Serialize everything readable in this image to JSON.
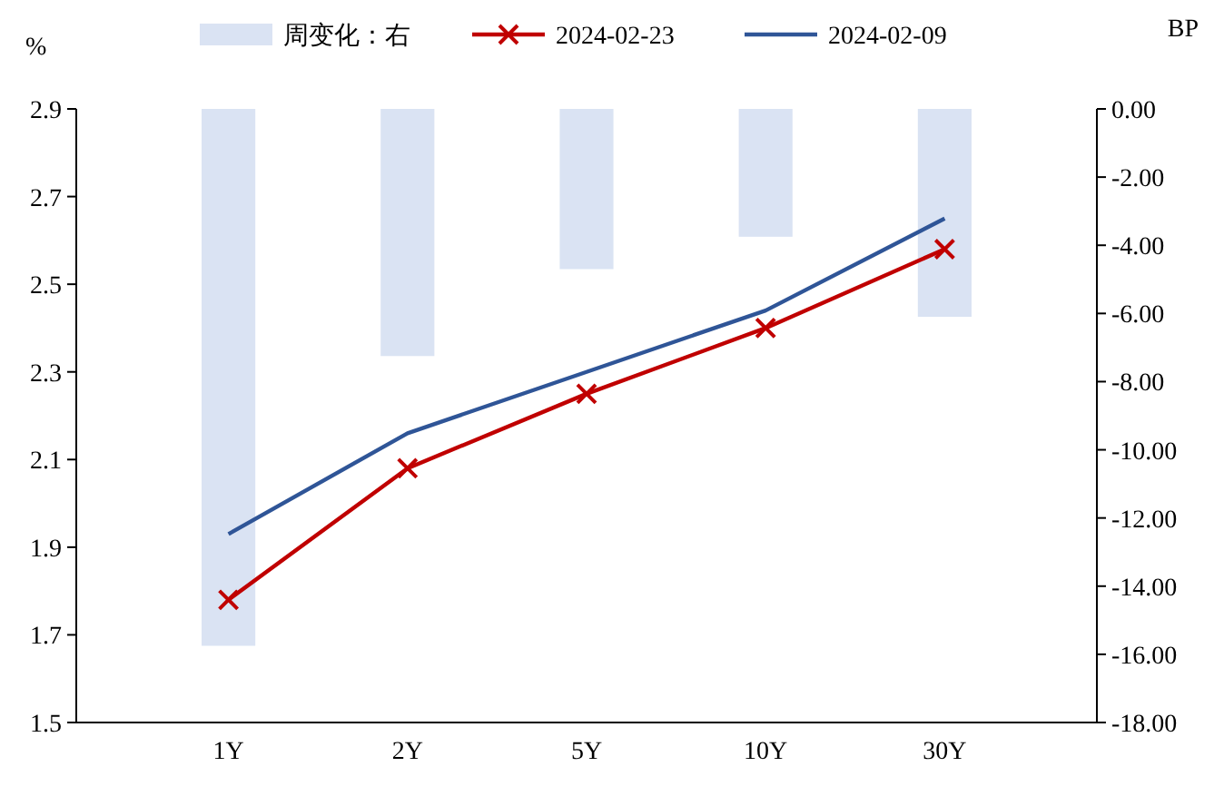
{
  "chart_data": {
    "type": "line",
    "categories": [
      "1Y",
      "2Y",
      "5Y",
      "10Y",
      "30Y"
    ],
    "ylabel": "%",
    "y2label": "BP",
    "ylim": [
      1.5,
      2.9
    ],
    "yticks": [
      1.5,
      1.7,
      1.9,
      2.1,
      2.3,
      2.5,
      2.7,
      2.9
    ],
    "y2lim": [
      -18,
      0
    ],
    "y2ticks": [
      {
        "value": -18,
        "label": "-18.00"
      },
      {
        "value": -16,
        "label": "-16.00"
      },
      {
        "value": -14,
        "label": "-14.00"
      },
      {
        "value": -12,
        "label": "-12.00"
      },
      {
        "value": -10,
        "label": "-10.00"
      },
      {
        "value": -8,
        "label": "-8.00"
      },
      {
        "value": -6,
        "label": "-6.00"
      },
      {
        "value": -4,
        "label": "-4.00"
      },
      {
        "value": -2,
        "label": "-2.00"
      },
      {
        "value": 0,
        "label": "0.00"
      }
    ],
    "legend": "top",
    "grid": false,
    "series": [
      {
        "name": "周变化：右",
        "type": "bar",
        "axis": "y2",
        "color": "#dae3f3",
        "values": [
          -15.75,
          -7.25,
          -4.7,
          -3.75,
          -6.1
        ]
      },
      {
        "name": "2024-02-23",
        "color": "#c00000",
        "marker": "cross",
        "values": [
          1.78,
          2.08,
          2.25,
          2.4,
          2.58
        ]
      },
      {
        "name": "2024-02-09",
        "color": "#2f5597",
        "marker": "none",
        "values": [
          1.93,
          2.16,
          2.3,
          2.44,
          2.65
        ]
      }
    ]
  }
}
